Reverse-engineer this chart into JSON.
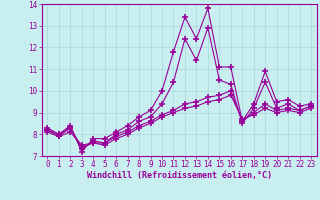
{
  "xlabel": "Windchill (Refroidissement éolien,°C)",
  "bg_color": "#c8eef0",
  "line_color": "#990099",
  "grid_color": "#a8d8dc",
  "xlim": [
    -0.5,
    23.5
  ],
  "ylim": [
    7,
    14
  ],
  "xticks": [
    0,
    1,
    2,
    3,
    4,
    5,
    6,
    7,
    8,
    9,
    10,
    11,
    12,
    13,
    14,
    15,
    16,
    17,
    18,
    19,
    20,
    21,
    22,
    23
  ],
  "yticks": [
    7,
    8,
    9,
    10,
    11,
    12,
    13,
    14
  ],
  "line1_x": [
    0,
    1,
    2,
    3,
    4,
    5,
    6,
    7,
    8,
    9,
    10,
    11,
    12,
    13,
    14,
    15,
    16,
    17,
    18,
    19,
    20,
    21,
    22,
    23
  ],
  "line1_y": [
    8.3,
    8.0,
    8.4,
    7.2,
    7.8,
    7.8,
    8.1,
    8.4,
    8.8,
    9.1,
    10.0,
    11.8,
    13.4,
    12.4,
    13.8,
    11.1,
    11.1,
    8.6,
    9.4,
    10.9,
    9.5,
    9.6,
    9.3,
    9.4
  ],
  "line2_x": [
    0,
    1,
    2,
    3,
    4,
    5,
    6,
    7,
    8,
    9,
    10,
    11,
    12,
    13,
    14,
    15,
    16,
    17,
    18,
    19,
    20,
    21,
    22,
    23
  ],
  "line2_y": [
    8.2,
    7.9,
    8.3,
    7.3,
    7.7,
    7.6,
    8.0,
    8.2,
    8.6,
    8.8,
    9.4,
    10.4,
    12.4,
    11.4,
    12.9,
    10.5,
    10.3,
    8.5,
    9.2,
    10.4,
    9.2,
    9.4,
    9.1,
    9.3
  ],
  "line3_x": [
    0,
    1,
    2,
    3,
    4,
    5,
    6,
    7,
    8,
    9,
    10,
    11,
    12,
    13,
    14,
    15,
    16,
    17,
    18,
    19,
    20,
    21,
    22,
    23
  ],
  "line3_y": [
    8.2,
    8.0,
    8.3,
    7.4,
    7.6,
    7.6,
    7.9,
    8.1,
    8.4,
    8.6,
    8.9,
    9.1,
    9.4,
    9.5,
    9.7,
    9.8,
    10.0,
    8.6,
    9.0,
    9.4,
    9.1,
    9.2,
    9.1,
    9.3
  ],
  "line4_x": [
    0,
    1,
    2,
    3,
    4,
    5,
    6,
    7,
    8,
    9,
    10,
    11,
    12,
    13,
    14,
    15,
    16,
    17,
    18,
    19,
    20,
    21,
    22,
    23
  ],
  "line4_y": [
    8.1,
    7.9,
    8.1,
    7.5,
    7.6,
    7.5,
    7.8,
    8.0,
    8.3,
    8.5,
    8.8,
    9.0,
    9.2,
    9.3,
    9.5,
    9.6,
    9.8,
    8.7,
    8.9,
    9.2,
    9.0,
    9.1,
    9.0,
    9.2
  ]
}
